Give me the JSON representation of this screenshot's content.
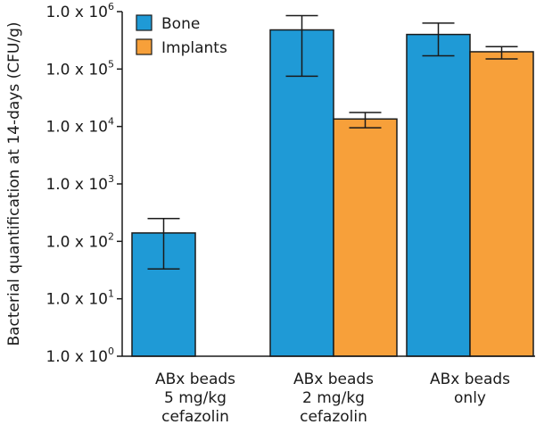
{
  "chart_data": {
    "type": "bar",
    "ylabel": "Bacterial quantification at 14-days (CFU/g)",
    "yscale": "log",
    "ylim": [
      1,
      1000000
    ],
    "y_ticks": [
      {
        "value": 1,
        "base": "1.0 x 10",
        "exp": "0"
      },
      {
        "value": 10,
        "base": "1.0 x 10",
        "exp": "1"
      },
      {
        "value": 100,
        "base": "1.0 x 10",
        "exp": "2"
      },
      {
        "value": 1000,
        "base": "1.0 x 10",
        "exp": "3"
      },
      {
        "value": 10000,
        "base": "1.0 x 10",
        "exp": "4"
      },
      {
        "value": 100000,
        "base": "1.0 x 10",
        "exp": "5"
      },
      {
        "value": 1000000,
        "base": "1.0 x 10",
        "exp": "6"
      }
    ],
    "categories": [
      [
        "ABx beads",
        "5 mg/kg",
        "cefazolin"
      ],
      [
        "ABx beads",
        "2 mg/kg",
        "cefazolin"
      ],
      [
        "ABx beads",
        "only"
      ]
    ],
    "legend_position": "top-left",
    "series": [
      {
        "name": "Bone",
        "color": "#1f9ad6",
        "values": [
          140,
          480000,
          400000
        ],
        "error_low": [
          33,
          75000,
          170000
        ],
        "error_high": [
          250,
          850000,
          630000
        ]
      },
      {
        "name": "Implants",
        "color": "#f7a03a",
        "values": [
          null,
          13500,
          200000
        ],
        "error_low": [
          null,
          9500,
          150000
        ],
        "error_high": [
          null,
          17500,
          245000
        ]
      }
    ]
  }
}
